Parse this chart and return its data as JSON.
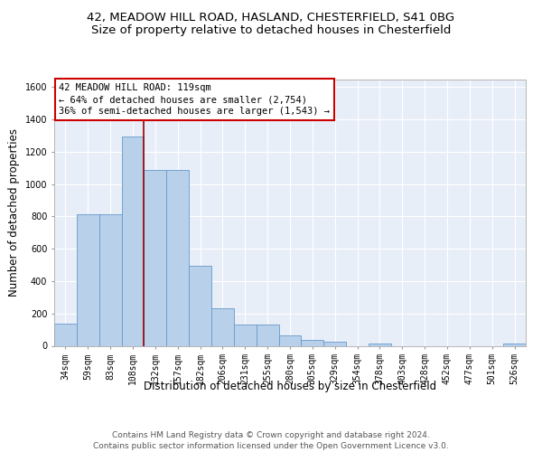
{
  "title_line1": "42, MEADOW HILL ROAD, HASLAND, CHESTERFIELD, S41 0BG",
  "title_line2": "Size of property relative to detached houses in Chesterfield",
  "xlabel": "Distribution of detached houses by size in Chesterfield",
  "ylabel": "Number of detached properties",
  "footer_line1": "Contains HM Land Registry data © Crown copyright and database right 2024.",
  "footer_line2": "Contains public sector information licensed under the Open Government Licence v3.0.",
  "bar_labels": [
    "34sqm",
    "59sqm",
    "83sqm",
    "108sqm",
    "132sqm",
    "157sqm",
    "182sqm",
    "206sqm",
    "231sqm",
    "255sqm",
    "280sqm",
    "305sqm",
    "329sqm",
    "354sqm",
    "378sqm",
    "403sqm",
    "428sqm",
    "452sqm",
    "477sqm",
    "501sqm",
    "526sqm"
  ],
  "bar_values": [
    135,
    815,
    815,
    1295,
    1090,
    1090,
    495,
    230,
    130,
    130,
    65,
    37,
    25,
    0,
    15,
    0,
    0,
    0,
    0,
    0,
    15
  ],
  "bar_color": "#b8d0ea",
  "bar_edgecolor": "#6699cc",
  "vline_x": 4,
  "vline_color": "#990000",
  "annotation_text": "42 MEADOW HILL ROAD: 119sqm\n← 64% of detached houses are smaller (2,754)\n36% of semi-detached houses are larger (1,543) →",
  "annotation_box_edgecolor": "#cc0000",
  "ylim": [
    0,
    1650
  ],
  "yticks": [
    0,
    200,
    400,
    600,
    800,
    1000,
    1200,
    1400,
    1600
  ],
  "background_color": "#e8eef8",
  "grid_color": "#ffffff",
  "title_fontsize": 9.5,
  "subtitle_fontsize": 9.5,
  "axis_label_fontsize": 8.5,
  "tick_fontsize": 7,
  "footer_fontsize": 6.5,
  "annotation_fontsize": 7.5
}
